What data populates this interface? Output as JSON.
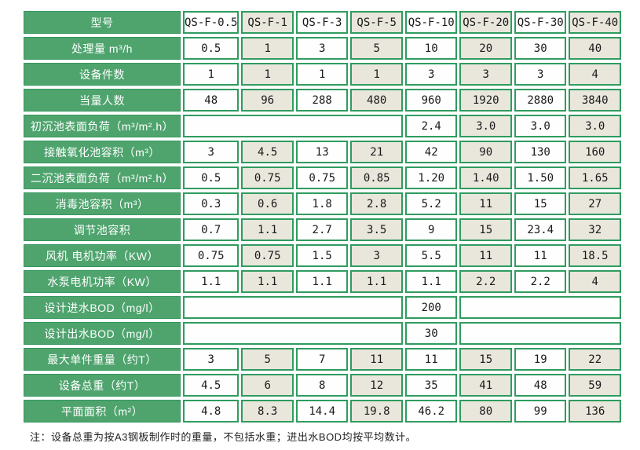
{
  "table": {
    "header_label": "型号",
    "models": [
      "QS-F-0.5",
      "QS-F-1",
      "QS-F-3",
      "QS-F-5",
      "QS-F-10",
      "QS-F-20",
      "QS-F-30",
      "QS-F-40"
    ],
    "rows": [
      {
        "label": "处理量 m³/h",
        "cells": [
          "0.5",
          "1",
          "3",
          "5",
          "10",
          "20",
          "30",
          "40"
        ]
      },
      {
        "label": "设备件数",
        "cells": [
          "1",
          "1",
          "1",
          "1",
          "3",
          "3",
          "3",
          "4"
        ]
      },
      {
        "label": "当量人数",
        "cells": [
          "48",
          "96",
          "288",
          "480",
          "960",
          "1920",
          "2880",
          "3840"
        ]
      },
      {
        "label": "初沉池表面负荷（m³/m².h）",
        "cells": [
          {
            "span": 4,
            "text": ""
          },
          "2.4",
          "3.0",
          "3.0",
          "3.0"
        ]
      },
      {
        "label": "接触氧化池容积（m³）",
        "cells": [
          "3",
          "4.5",
          "13",
          "21",
          "42",
          "90",
          "130",
          "160"
        ]
      },
      {
        "label": "二沉池表面负荷（m³/m².h）",
        "cells": [
          "0.5",
          "0.75",
          "0.75",
          "0.85",
          "1.20",
          "1.40",
          "1.50",
          "1.65"
        ]
      },
      {
        "label": "消毒池容积（m³）",
        "cells": [
          "0.3",
          "0.6",
          "1.8",
          "2.8",
          "5.2",
          "11",
          "15",
          "27"
        ]
      },
      {
        "label": "调节池容积",
        "cells": [
          "0.7",
          "1.1",
          "2.7",
          "3.5",
          "9",
          "15",
          "23.4",
          "32"
        ]
      },
      {
        "label": "风机 电机功率（KW）",
        "cells": [
          "0.75",
          "0.75",
          "1.5",
          "3",
          "5.5",
          "11",
          "11",
          "18.5"
        ]
      },
      {
        "label": "水泵电机功率（KW）",
        "cells": [
          "1.1",
          "1.1",
          "1.1",
          "1.1",
          "1.1",
          "2.2",
          "2.2",
          "4"
        ]
      },
      {
        "label": "设计进水BOD（mg/l）",
        "cells": [
          {
            "span": 4,
            "text": ""
          },
          "200",
          {
            "span": 3,
            "text": ""
          }
        ]
      },
      {
        "label": "设计出水BOD（mg/l）",
        "cells": [
          {
            "span": 4,
            "text": ""
          },
          "30",
          {
            "span": 3,
            "text": ""
          }
        ]
      },
      {
        "label": "最大单件重量（约T）",
        "cells": [
          "3",
          "5",
          "7",
          "11",
          "11",
          "15",
          "19",
          "22"
        ]
      },
      {
        "label": "设备总重（约T）",
        "cells": [
          "4.5",
          "6",
          "8",
          "12",
          "35",
          "41",
          "48",
          "59"
        ]
      },
      {
        "label": "平面面积（m²）",
        "cells": [
          "4.8",
          "8.3",
          "14.4",
          "19.8",
          "46.2",
          "80",
          "99",
          "136"
        ]
      }
    ]
  },
  "note": "注：设备总重为按A3钢板制作时的重量，不包括水重；进出水BOD均按平均数计。",
  "colors": {
    "label_green": "#4fa46e",
    "border_green": "#2f9c5f",
    "alt_beige": "#e9e6dc",
    "cell_white": "#fefefe"
  }
}
